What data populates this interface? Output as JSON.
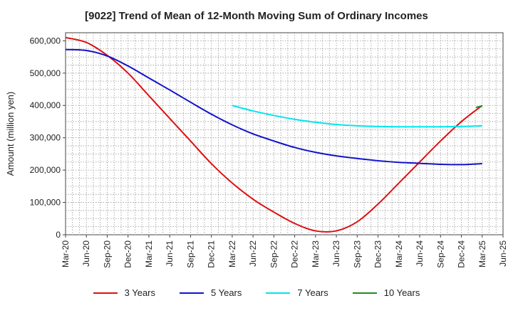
{
  "chart_data": {
    "type": "line",
    "title": "[9022]  Trend of Mean of 12-Month Moving Sum of Ordinary Incomes",
    "xlabel": "",
    "ylabel": "Amount (million yen)",
    "ylim": [
      0,
      625000
    ],
    "y_ticks": [
      0,
      100000,
      200000,
      300000,
      400000,
      500000,
      600000
    ],
    "y_tick_labels": [
      "0",
      "100,000",
      "200,000",
      "300,000",
      "400,000",
      "500,000",
      "600,000"
    ],
    "x_tick_labels": [
      "Mar-20",
      "Jun-20",
      "Sep-20",
      "Dec-20",
      "Mar-21",
      "Jun-21",
      "Sep-21",
      "Dec-21",
      "Mar-22",
      "Jun-22",
      "Sep-22",
      "Dec-22",
      "Mar-23",
      "Jun-23",
      "Sep-23",
      "Dec-23",
      "Mar-24",
      "Jun-24",
      "Sep-24",
      "Dec-24",
      "Mar-25",
      "Jun-25"
    ],
    "grid": true,
    "legend_position": "bottom",
    "series": [
      {
        "name": "3 Years",
        "color": "#dd1111",
        "x": [
          0,
          1,
          2,
          3,
          4,
          5,
          6,
          7,
          8,
          9,
          10,
          11,
          12,
          13,
          14,
          15,
          16,
          17,
          18,
          19,
          20
        ],
        "values": [
          610000,
          595000,
          555000,
          500000,
          430000,
          360000,
          290000,
          220000,
          160000,
          110000,
          70000,
          35000,
          12000,
          12000,
          40000,
          95000,
          160000,
          225000,
          290000,
          350000,
          400000
        ]
      },
      {
        "name": "5 Years",
        "color": "#1111cc",
        "x": [
          0,
          1,
          2,
          3,
          4,
          5,
          6,
          7,
          8,
          9,
          10,
          11,
          12,
          13,
          14,
          15,
          16,
          17,
          18,
          19,
          20
        ],
        "values": [
          573000,
          570000,
          553000,
          522000,
          485000,
          448000,
          410000,
          373000,
          340000,
          312000,
          290000,
          270000,
          255000,
          244000,
          236000,
          229000,
          224000,
          221000,
          218000,
          217000,
          220000
        ]
      },
      {
        "name": "7 Years",
        "color": "#00e5ee",
        "x": [
          8,
          9,
          10,
          11,
          12,
          13,
          14,
          15,
          16,
          17,
          18,
          19,
          20
        ],
        "values": [
          400000,
          383000,
          369000,
          357000,
          348000,
          341000,
          337000,
          335000,
          334000,
          334000,
          334000,
          335000,
          337000
        ]
      },
      {
        "name": "10 Years",
        "color": "#228B22",
        "x": [
          19.7,
          20
        ],
        "values": [
          394000,
          398000
        ]
      }
    ]
  }
}
